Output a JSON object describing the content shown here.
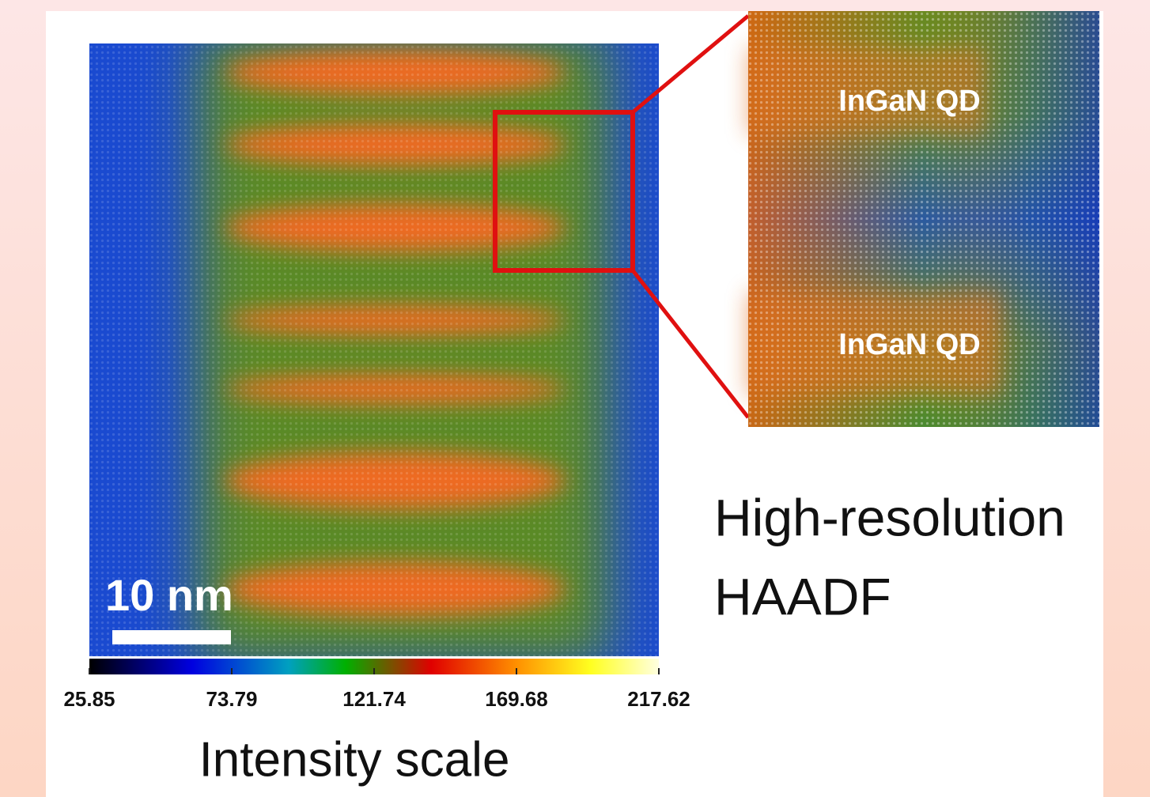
{
  "image": {
    "scale_bar": "10 nm"
  },
  "inset": {
    "labels": [
      "InGaN QD",
      "InGaN QD"
    ]
  },
  "caption": {
    "lines": [
      "High-resolution",
      "HAADF"
    ]
  },
  "colorbar": {
    "ticks": [
      25.85,
      73.79,
      121.74,
      169.68,
      217.62
    ],
    "label": "Intensity scale"
  }
}
